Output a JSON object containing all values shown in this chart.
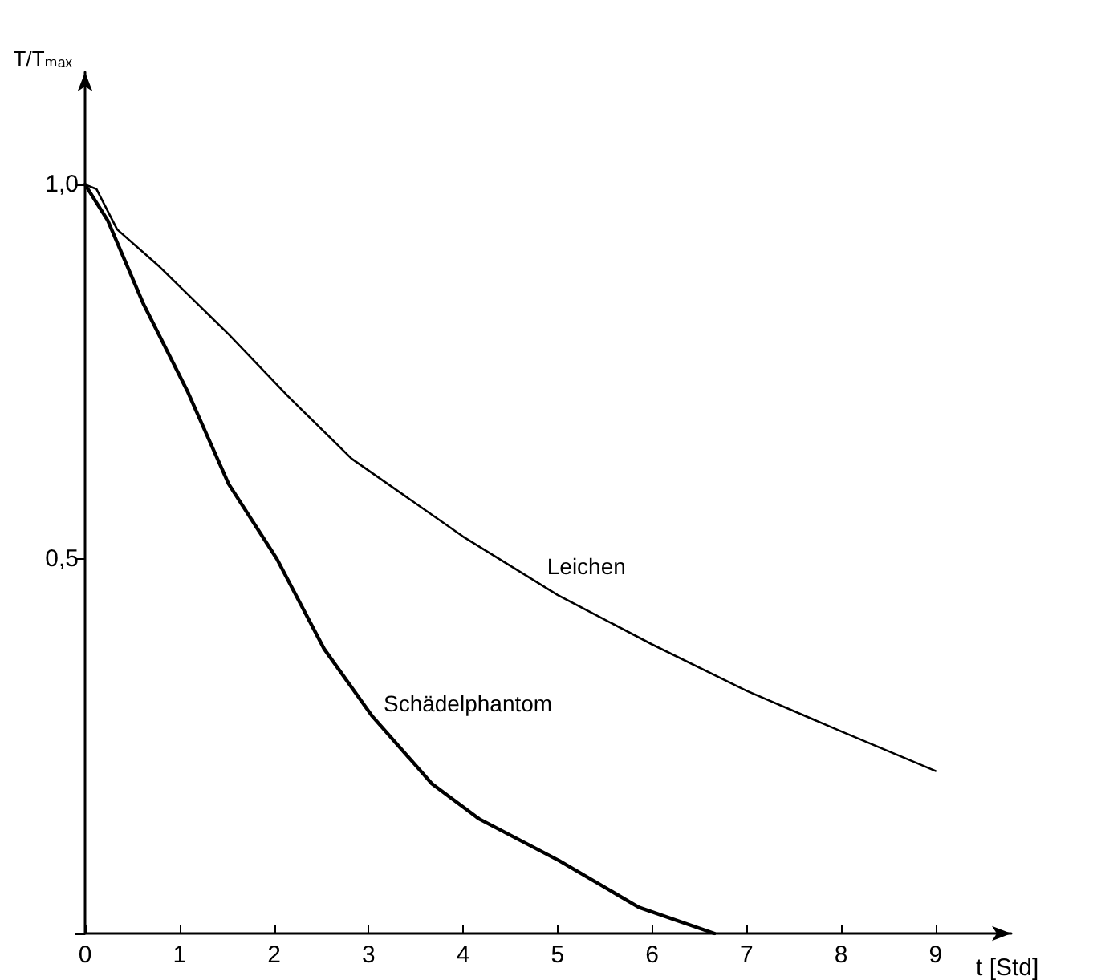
{
  "chart_data": {
    "type": "line",
    "xlabel": "t [Std]",
    "ylabel": "T/Tₘₐₓ",
    "xlim": [
      0,
      9.8
    ],
    "xticks": [
      0,
      1,
      2,
      3,
      4,
      5,
      6,
      7,
      8,
      9
    ],
    "ylim": [
      0,
      1.15
    ],
    "yticks": [
      {
        "value": 0,
        "label": null
      },
      {
        "value": 0.5,
        "label": "0,5"
      },
      {
        "value": 1,
        "label": "1,0"
      }
    ],
    "grid": false,
    "legend": false,
    "marker": "none",
    "line_style": "solid",
    "series": [
      {
        "name": "Leichen",
        "color": "#000000",
        "x": [
          0,
          0.12,
          0.34,
          0.79,
          1.52,
          2.15,
          2.82,
          4,
          5,
          6,
          7,
          8,
          9
        ],
        "values": [
          1,
          0.994,
          0.94,
          0.89,
          0.8,
          0.717,
          0.634,
          0.53,
          0.452,
          0.386,
          0.324,
          0.27,
          0.217
        ]
      },
      {
        "name": "Schädelphantom",
        "color": "#000000",
        "x": [
          0,
          0.24,
          0.62,
          1.08,
          1.52,
          2.03,
          2.53,
          3.04,
          3.67,
          4.17,
          5.02,
          5.86,
          6.66
        ],
        "values": [
          1,
          0.952,
          0.84,
          0.725,
          0.6,
          0.5,
          0.38,
          0.29,
          0.2,
          0.153,
          0.097,
          0.035,
          0
        ]
      }
    ]
  }
}
